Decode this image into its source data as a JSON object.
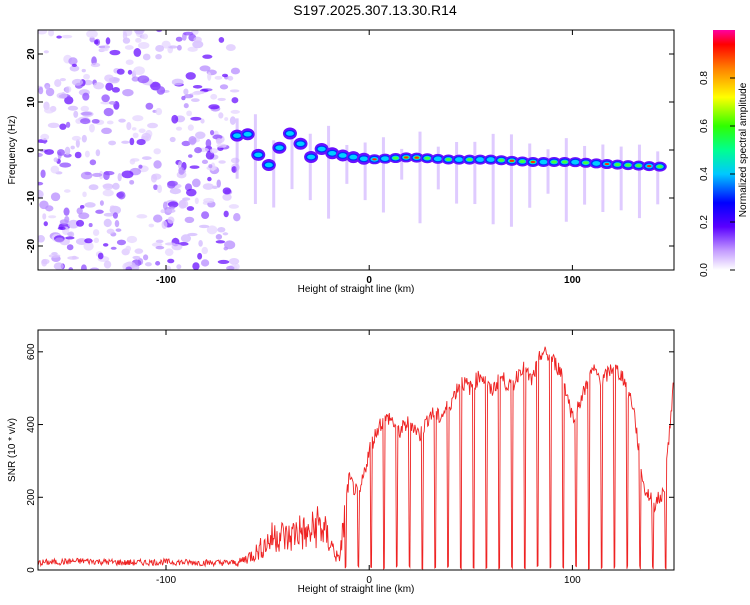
{
  "title": "S197.2025.307.13.30.R14",
  "chart_data": [
    {
      "type": "heatmap",
      "title": "S197.2025.307.13.30.R14",
      "xlabel": "Height of straight line (km)",
      "ylabel": "Frequency (Hz)",
      "xlim": [
        -163,
        150
      ],
      "ylim": [
        -25,
        25
      ],
      "x_ticks": [
        -100,
        0,
        100
      ],
      "y_ticks": [
        20,
        10,
        0,
        -10,
        -20
      ],
      "colorbar": {
        "label": "Normalized spectral amplitude",
        "range": [
          0,
          1
        ],
        "ticks": [
          0.0,
          0.2,
          0.4,
          0.6,
          0.8
        ]
      },
      "trace_frequency_hz": [
        [
          -65,
          3
        ],
        [
          -55,
          2
        ],
        [
          -47,
          -2
        ],
        [
          -40,
          1
        ],
        [
          -32,
          -1
        ],
        [
          -25,
          0
        ],
        [
          -15,
          -1
        ],
        [
          0,
          -2
        ],
        [
          20,
          -1.5
        ],
        [
          40,
          -2
        ],
        [
          60,
          -2
        ],
        [
          80,
          -2.5
        ],
        [
          100,
          -2.5
        ],
        [
          120,
          -3
        ],
        [
          145,
          -3.5
        ]
      ],
      "noise_region_km": [
        -163,
        -65
      ]
    },
    {
      "type": "line",
      "xlabel": "Height of straight line (km)",
      "ylabel": "SNR (10 * v/v)",
      "xlim": [
        -163,
        150
      ],
      "ylim": [
        0,
        660
      ],
      "x_ticks": [
        -100,
        0,
        100
      ],
      "y_ticks": [
        0,
        200,
        400,
        600
      ],
      "color": "#ee2222",
      "series": [
        {
          "name": "SNR",
          "x": [
            -163,
            -140,
            -120,
            -100,
            -80,
            -65,
            -60,
            -55,
            -50,
            -45,
            -40,
            -35,
            -30,
            -25,
            -20,
            -15,
            -10,
            -5,
            0,
            5,
            10,
            15,
            20,
            25,
            30,
            35,
            40,
            45,
            50,
            55,
            60,
            65,
            70,
            75,
            80,
            85,
            90,
            95,
            100,
            105,
            110,
            115,
            120,
            125,
            130,
            135,
            140,
            145,
            150
          ],
          "y": [
            20,
            25,
            20,
            22,
            20,
            20,
            40,
            60,
            90,
            120,
            100,
            130,
            110,
            150,
            100,
            30,
            250,
            200,
            330,
            400,
            420,
            380,
            410,
            370,
            430,
            420,
            460,
            520,
            500,
            540,
            490,
            530,
            500,
            560,
            520,
            600,
            580,
            540,
            420,
            480,
            550,
            520,
            560,
            530,
            450,
            230,
            180,
            210,
            520
          ]
        }
      ]
    }
  ]
}
